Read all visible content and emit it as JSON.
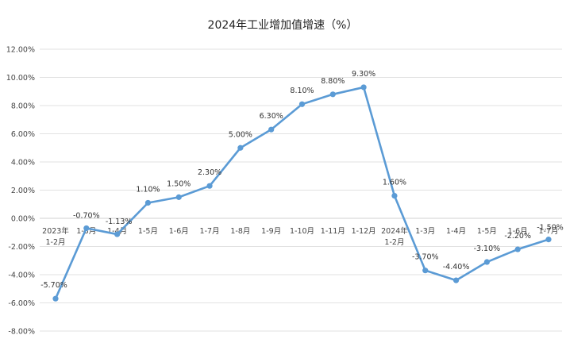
{
  "chart_data": {
    "type": "line",
    "title": "2024年工业增加值增速（%）",
    "xlabel": "",
    "ylabel": "",
    "ylim": [
      -8,
      12
    ],
    "yticks": [
      12,
      10,
      8,
      6,
      4,
      2,
      0,
      -2,
      -4,
      -6,
      -8
    ],
    "ytick_labels": [
      "12.00%",
      "10.00%",
      "8.00%",
      "6.00%",
      "4.00%",
      "2.00%",
      "0.00%",
      "-2.00%",
      "-4.00%",
      "-6.00%",
      "-8.00%"
    ],
    "grid": true,
    "legend": "none",
    "color": "#5b9bd5",
    "categories": [
      [
        "2023年",
        "1-2月"
      ],
      [
        "1-3月"
      ],
      [
        "1-4月"
      ],
      [
        "1-5月"
      ],
      [
        "1-6月"
      ],
      [
        "1-7月"
      ],
      [
        "1-8月"
      ],
      [
        "1-9月"
      ],
      [
        "1-10月"
      ],
      [
        "1-11月"
      ],
      [
        "1-12月"
      ],
      [
        "2024年",
        "1-2月"
      ],
      [
        "1-3月"
      ],
      [
        "1-4月"
      ],
      [
        "1-5月"
      ],
      [
        "1-6月"
      ],
      [
        "1-7月"
      ]
    ],
    "series": [
      {
        "values": [
          -5.7,
          -0.7,
          -1.13,
          1.1,
          1.5,
          2.3,
          5.0,
          6.3,
          8.1,
          8.8,
          9.3,
          1.6,
          -3.7,
          -4.4,
          -3.1,
          -2.2,
          -1.5
        ],
        "labels": [
          "-5.70%",
          "-0.70%",
          "-1.13%",
          "1.10%",
          "1.50%",
          "2.30%",
          "5.00%",
          "6.30%",
          "8.10%",
          "8.80%",
          "9.30%",
          "1.60%",
          "-3.70%",
          "-4.40%",
          "-3.10%",
          "-2.20%",
          "-1.50%"
        ]
      }
    ]
  }
}
